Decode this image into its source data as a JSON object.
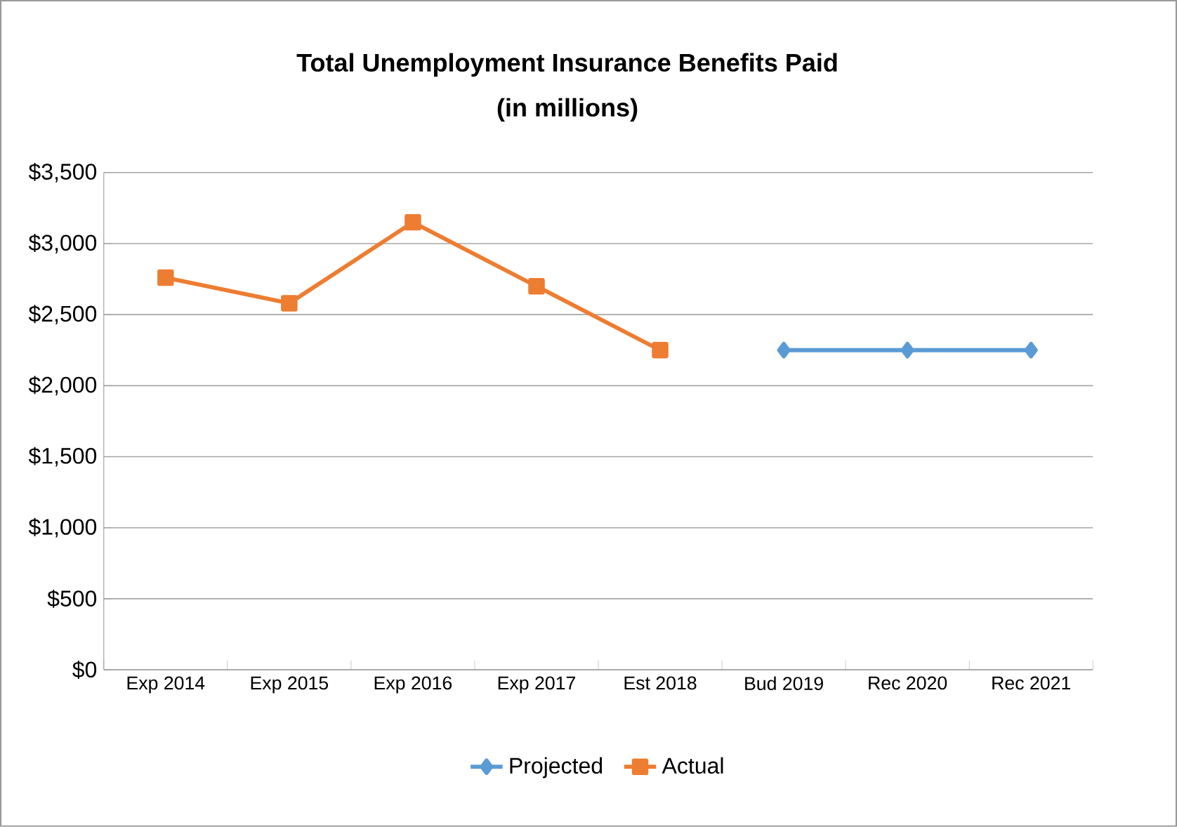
{
  "chart_data": {
    "type": "line",
    "title": "Total Unemployment Insurance Benefits Paid",
    "subtitle": "(in millions)",
    "categories": [
      "Exp 2014",
      "Exp 2015",
      "Exp 2016",
      "Exp 2017",
      "Est 2018",
      "Bud 2019",
      "Rec 2020",
      "Rec 2021"
    ],
    "series": [
      {
        "name": "Projected",
        "color": "#5b9bd5",
        "marker": "diamond",
        "values": [
          null,
          null,
          null,
          null,
          null,
          2250,
          2250,
          2250
        ]
      },
      {
        "name": "Actual",
        "color": "#ed7d31",
        "marker": "square",
        "values": [
          2760,
          2580,
          3150,
          2700,
          2250,
          null,
          null,
          null
        ]
      }
    ],
    "ylim": [
      0,
      3500
    ],
    "yticks": [
      {
        "value": 0,
        "label": "$0"
      },
      {
        "value": 500,
        "label": "$500"
      },
      {
        "value": 1000,
        "label": "$1,000"
      },
      {
        "value": 1500,
        "label": "$1,500"
      },
      {
        "value": 2000,
        "label": "$2,000"
      },
      {
        "value": 2500,
        "label": "$2,500"
      },
      {
        "value": 3000,
        "label": "$3,000"
      },
      {
        "value": 3500,
        "label": "$3,500"
      }
    ],
    "grid": "y",
    "legend": "bottom",
    "line_style": "solid"
  }
}
